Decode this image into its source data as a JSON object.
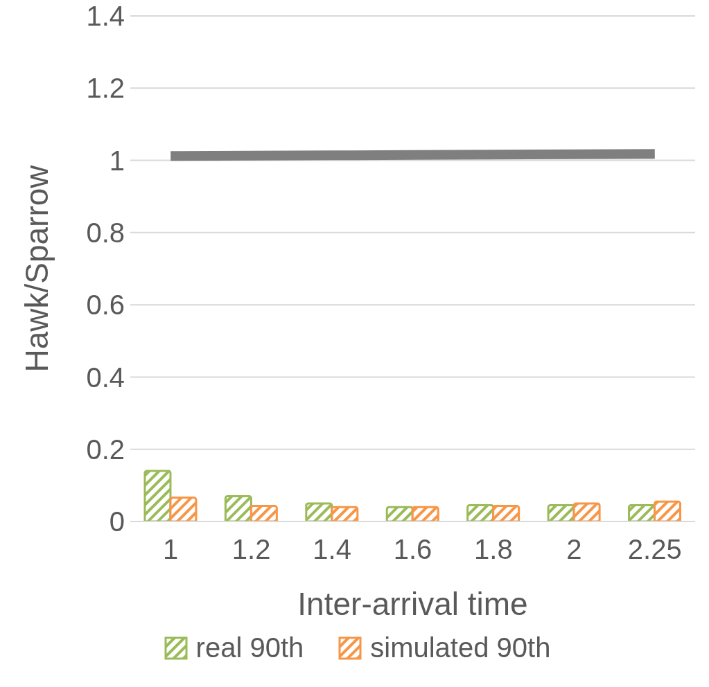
{
  "chart_data": {
    "type": "bar",
    "xlabel": "Inter-arrival time",
    "ylabel": "Hawk/Sparrow",
    "categories": [
      "1",
      "1.2",
      "1.4",
      "1.6",
      "1.8",
      "2",
      "2.25"
    ],
    "series": [
      {
        "name": "real 90th",
        "color": "#9bbb59",
        "values": [
          0.14,
          0.07,
          0.05,
          0.04,
          0.045,
          0.045,
          0.045
        ]
      },
      {
        "name": "simulated 90th",
        "color": "#f79646",
        "values": [
          0.066,
          0.043,
          0.04,
          0.04,
          0.043,
          0.05,
          0.055
        ]
      },
      {
        "type": "line",
        "color": "#7f7f7f",
        "values": [
          1.012,
          1.013,
          1.014,
          1.015,
          1.016,
          1.017,
          1.018
        ]
      }
    ],
    "ylim": [
      0,
      1.4
    ],
    "yticks": [
      0,
      0.2,
      0.4,
      0.6,
      0.8,
      1,
      1.2,
      1.4
    ],
    "grid": "y",
    "legend": "bottom",
    "marker": "none"
  }
}
